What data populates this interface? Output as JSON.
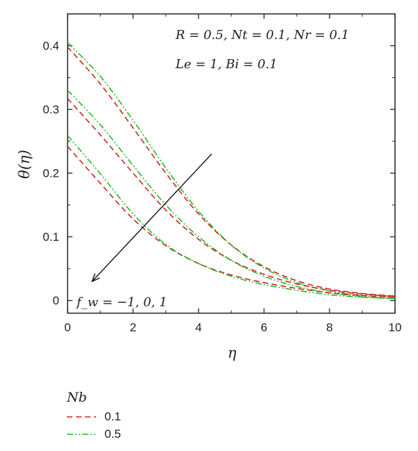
{
  "chart_data": {
    "type": "line",
    "xlabel": "η",
    "ylabel": "θ(η)",
    "xlim": [
      0,
      10
    ],
    "ylim": [
      -0.02,
      0.45
    ],
    "xticks": [
      0,
      2,
      4,
      6,
      8,
      10
    ],
    "yticks": [
      0,
      0.1,
      0.2,
      0.3,
      0.4
    ],
    "ytick_labels": [
      "0",
      "0.1",
      "0.2",
      "0.3",
      "0.4"
    ],
    "grid": false,
    "annotations": {
      "params_line1": "R = 0.5, Nt = 0.1, Nr = 0.1",
      "params_line2": "Le = 1, Bi = 0.1",
      "arrow_label": "f_w = −1, 0, 1",
      "arrow": {
        "from": [
          4.4,
          0.23
        ],
        "to": [
          0.75,
          0.03
        ]
      }
    },
    "legend": {
      "title": "Nb",
      "placement": "below",
      "entries": [
        {
          "label": "0.1",
          "color": "#cc2222",
          "dash": "dashed"
        },
        {
          "label": "0.5",
          "color": "#22bb22",
          "dash": "dashdotdot"
        }
      ]
    },
    "series": [
      {
        "Nb": "0.1",
        "fw": "-1",
        "color": "#cc2222",
        "x": [
          0,
          1,
          2,
          3,
          4,
          5,
          6,
          7,
          8,
          9,
          10
        ],
        "y": [
          0.398,
          0.34,
          0.271,
          0.2,
          0.136,
          0.087,
          0.053,
          0.031,
          0.018,
          0.011,
          0.007
        ]
      },
      {
        "Nb": "0.5",
        "fw": "-1",
        "color": "#22bb22",
        "x": [
          0,
          1,
          2,
          3,
          4,
          5,
          6,
          7,
          8,
          9,
          10
        ],
        "y": [
          0.405,
          0.352,
          0.283,
          0.208,
          0.14,
          0.087,
          0.051,
          0.028,
          0.015,
          0.007,
          0.003
        ]
      },
      {
        "Nb": "0.1",
        "fw": "0",
        "color": "#cc2222",
        "x": [
          0,
          1,
          2,
          3,
          4,
          5,
          6,
          7,
          8,
          9,
          10
        ],
        "y": [
          0.317,
          0.26,
          0.2,
          0.142,
          0.096,
          0.063,
          0.041,
          0.026,
          0.016,
          0.01,
          0.006
        ]
      },
      {
        "Nb": "0.5",
        "fw": "0",
        "color": "#22bb22",
        "x": [
          0,
          1,
          2,
          3,
          4,
          5,
          6,
          7,
          8,
          9,
          10
        ],
        "y": [
          0.33,
          0.276,
          0.212,
          0.15,
          0.1,
          0.063,
          0.038,
          0.022,
          0.012,
          0.006,
          0.003
        ]
      },
      {
        "Nb": "0.1",
        "fw": "1",
        "color": "#cc2222",
        "x": [
          0,
          1,
          2,
          3,
          4,
          5,
          6,
          7,
          8,
          9,
          10
        ],
        "y": [
          0.242,
          0.184,
          0.128,
          0.086,
          0.058,
          0.04,
          0.028,
          0.019,
          0.012,
          0.008,
          0.005
        ]
      },
      {
        "Nb": "0.5",
        "fw": "1",
        "color": "#22bb22",
        "x": [
          0,
          1,
          2,
          3,
          4,
          5,
          6,
          7,
          8,
          9,
          10
        ],
        "y": [
          0.259,
          0.199,
          0.136,
          0.088,
          0.058,
          0.038,
          0.025,
          0.016,
          0.009,
          0.005,
          0.003
        ]
      }
    ]
  }
}
